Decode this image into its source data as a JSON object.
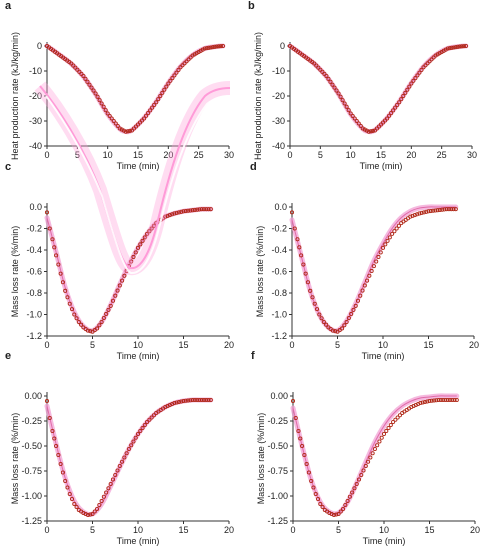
{
  "colors": {
    "model": "#f2a2d4",
    "data": "#b02818",
    "axis": "#333333",
    "artifact": "#ff9bd8"
  },
  "chart_data": [
    {
      "panel": "a",
      "type": "scatter",
      "xlabel": "Time (min)",
      "ylabel": "Heat production rate (kJ/kg/min)",
      "xlim": [
        0,
        30
      ],
      "ylim": [
        -40,
        0
      ],
      "xticks": [
        "0",
        "5",
        "10",
        "15",
        "20",
        "25",
        "30"
      ],
      "yticks": [
        "0",
        "-10",
        "-20",
        "-30",
        "-40"
      ],
      "series": [
        {
          "role": "measured",
          "x": [
            0,
            2,
            4,
            6,
            8,
            10,
            12,
            13,
            14,
            16,
            18,
            20,
            22,
            24,
            26,
            28,
            29
          ],
          "y": [
            0,
            -3.5,
            -7,
            -12,
            -19,
            -27,
            -33,
            -34.3,
            -33.8,
            -29,
            -22.5,
            -15,
            -8.5,
            -3.8,
            -1,
            -0.2,
            0
          ]
        },
        {
          "role": "model",
          "x": [
            0,
            2,
            4,
            6,
            8,
            10,
            12,
            13,
            14,
            16,
            18,
            20,
            22,
            24,
            26,
            28,
            29
          ],
          "y": [
            0,
            -3.4,
            -7.1,
            -12.2,
            -19.2,
            -27.3,
            -33.1,
            -34.2,
            -33.6,
            -28.8,
            -22.3,
            -14.8,
            -8.3,
            -3.7,
            -1,
            -0.2,
            0
          ]
        }
      ]
    },
    {
      "panel": "b",
      "type": "scatter",
      "xlabel": "Time (min)",
      "ylabel": "Heat production rate (kJ/kg/min)",
      "xlim": [
        0,
        30
      ],
      "ylim": [
        -40,
        0
      ],
      "xticks": [
        "0",
        "5",
        "10",
        "15",
        "20",
        "25",
        "30"
      ],
      "yticks": [
        "0",
        "-10",
        "-20",
        "-30",
        "-40"
      ],
      "series": [
        {
          "role": "measured",
          "x": [
            0,
            2,
            4,
            6,
            8,
            10,
            12,
            13,
            14,
            16,
            18,
            20,
            22,
            24,
            26,
            28,
            29
          ],
          "y": [
            0,
            -3.5,
            -7,
            -12,
            -19,
            -27,
            -33,
            -34.3,
            -33.8,
            -29,
            -22.5,
            -15,
            -8.5,
            -3.8,
            -1,
            -0.2,
            0
          ]
        },
        {
          "role": "model",
          "x": [
            0,
            2,
            4,
            6,
            8,
            10,
            12,
            13,
            14,
            16,
            18,
            20,
            22,
            24,
            26,
            28,
            29
          ],
          "y": [
            0,
            -3.4,
            -7.1,
            -12.2,
            -19.2,
            -27.3,
            -33.1,
            -34.2,
            -33.6,
            -28.8,
            -22.3,
            -14.8,
            -8.3,
            -3.7,
            -1,
            -0.2,
            0
          ]
        }
      ]
    },
    {
      "panel": "c",
      "type": "scatter",
      "xlabel": "Time (min)",
      "ylabel": "Mass loss rate (%/min)",
      "xlim": [
        0,
        20
      ],
      "ylim": [
        -1.2,
        0.0
      ],
      "xticks": [
        "0",
        "5",
        "10",
        "15",
        "20"
      ],
      "yticks": [
        "0.0",
        "-0.2",
        "-0.4",
        "-0.6",
        "-0.8",
        "-1.0",
        "-1.2"
      ],
      "series": [
        {
          "role": "measured",
          "x": [
            0,
            0.3,
            0.6,
            1,
            1.5,
            2,
            2.5,
            3,
            3.5,
            4,
            4.5,
            5,
            5.5,
            6,
            7,
            8,
            9,
            10,
            11,
            12,
            13,
            14,
            15,
            16,
            17,
            18
          ],
          "y": [
            -0.05,
            -0.2,
            -0.3,
            -0.45,
            -0.62,
            -0.78,
            -0.9,
            -1.0,
            -1.07,
            -1.12,
            -1.15,
            -1.16,
            -1.13,
            -1.07,
            -0.92,
            -0.73,
            -0.55,
            -0.38,
            -0.25,
            -0.15,
            -0.09,
            -0.06,
            -0.04,
            -0.03,
            -0.02,
            -0.02
          ]
        },
        {
          "role": "model",
          "x": [
            0,
            1,
            2,
            3,
            4,
            5,
            6,
            7,
            8,
            9,
            10,
            11,
            12,
            13,
            14,
            15,
            16,
            17,
            18
          ],
          "y": [
            -0.1,
            -0.42,
            -0.75,
            -0.98,
            -1.11,
            -1.15,
            -1.07,
            -0.91,
            -0.72,
            -0.54,
            -0.38,
            -0.25,
            -0.15,
            -0.09,
            -0.06,
            -0.04,
            -0.03,
            -0.02,
            -0.02
          ]
        }
      ]
    },
    {
      "panel": "d",
      "type": "scatter",
      "xlabel": "Time (min)",
      "ylabel": "Mass loss rate (%/min)",
      "xlim": [
        0,
        20
      ],
      "ylim": [
        -1.2,
        0.0
      ],
      "xticks": [
        "0",
        "5",
        "10",
        "15",
        "20"
      ],
      "yticks": [
        "0.0",
        "-0.2",
        "-0.4",
        "-0.6",
        "-0.8",
        "-1.0",
        "-1.2"
      ],
      "series": [
        {
          "role": "measured",
          "x": [
            0,
            0.3,
            0.6,
            1,
            1.5,
            2,
            2.5,
            3,
            3.5,
            4,
            4.5,
            5,
            5.5,
            6,
            7,
            8,
            9,
            10,
            11,
            12,
            13,
            14,
            15,
            16,
            17,
            18
          ],
          "y": [
            -0.05,
            -0.2,
            -0.3,
            -0.45,
            -0.62,
            -0.78,
            -0.9,
            -1.0,
            -1.07,
            -1.12,
            -1.15,
            -1.16,
            -1.13,
            -1.07,
            -0.92,
            -0.73,
            -0.55,
            -0.38,
            -0.25,
            -0.15,
            -0.09,
            -0.06,
            -0.04,
            -0.03,
            -0.02,
            -0.02
          ]
        },
        {
          "role": "model",
          "x": [
            0,
            1,
            2,
            3,
            4,
            5,
            6,
            7,
            8,
            9,
            10,
            11,
            12,
            13,
            14,
            15,
            16,
            17,
            18
          ],
          "y": [
            -0.12,
            -0.45,
            -0.78,
            -1.0,
            -1.12,
            -1.15,
            -1.06,
            -0.9,
            -0.7,
            -0.5,
            -0.34,
            -0.2,
            -0.1,
            -0.04,
            -0.01,
            0.0,
            0.0,
            0.0,
            0.0
          ]
        }
      ]
    },
    {
      "panel": "e",
      "type": "scatter",
      "xlabel": "Time (min)",
      "ylabel": "Mass loss rate (%/min)",
      "xlim": [
        0,
        20
      ],
      "ylim": [
        -1.25,
        0.0
      ],
      "xticks": [
        "0",
        "5",
        "10",
        "15",
        "20"
      ],
      "yticks": [
        "0.00",
        "-0.25",
        "-0.50",
        "-0.75",
        "-1.00",
        "-1.25"
      ],
      "series": [
        {
          "role": "measured",
          "x": [
            0,
            0.3,
            0.6,
            1,
            1.5,
            2,
            2.5,
            3,
            3.5,
            4,
            4.5,
            5,
            5.5,
            6,
            7,
            8,
            9,
            10,
            11,
            12,
            13,
            14,
            15,
            16,
            17,
            18
          ],
          "y": [
            -0.05,
            -0.22,
            -0.35,
            -0.5,
            -0.68,
            -0.85,
            -0.98,
            -1.08,
            -1.14,
            -1.17,
            -1.19,
            -1.18,
            -1.13,
            -1.05,
            -0.88,
            -0.7,
            -0.53,
            -0.38,
            -0.26,
            -0.17,
            -0.11,
            -0.07,
            -0.05,
            -0.04,
            -0.04,
            -0.04
          ]
        },
        {
          "role": "model",
          "x": [
            0,
            1,
            2,
            3,
            4,
            5,
            6,
            7,
            8,
            9,
            10,
            11,
            12,
            13,
            14,
            15,
            16,
            17,
            18
          ],
          "y": [
            -0.1,
            -0.48,
            -0.82,
            -1.05,
            -1.16,
            -1.18,
            -1.08,
            -0.9,
            -0.71,
            -0.53,
            -0.38,
            -0.26,
            -0.17,
            -0.11,
            -0.07,
            -0.05,
            -0.04,
            -0.04,
            -0.04
          ]
        }
      ]
    },
    {
      "panel": "f",
      "type": "scatter",
      "xlabel": "Time (min)",
      "ylabel": "Mass loss rate (%/min)",
      "xlim": [
        0,
        20
      ],
      "ylim": [
        -1.25,
        0.0
      ],
      "xticks": [
        "0",
        "5",
        "10",
        "15",
        "20"
      ],
      "yticks": [
        "0.00",
        "-0.25",
        "-0.50",
        "-0.75",
        "-1.00",
        "-1.25"
      ],
      "series": [
        {
          "role": "measured",
          "x": [
            0,
            0.3,
            0.6,
            1,
            1.5,
            2,
            2.5,
            3,
            3.5,
            4,
            4.5,
            5,
            5.5,
            6,
            7,
            8,
            9,
            10,
            11,
            12,
            13,
            14,
            15,
            16,
            17,
            18
          ],
          "y": [
            -0.05,
            -0.22,
            -0.35,
            -0.5,
            -0.68,
            -0.85,
            -0.98,
            -1.08,
            -1.14,
            -1.17,
            -1.19,
            -1.18,
            -1.13,
            -1.05,
            -0.88,
            -0.7,
            -0.53,
            -0.38,
            -0.26,
            -0.17,
            -0.11,
            -0.07,
            -0.05,
            -0.04,
            -0.04,
            -0.04
          ]
        },
        {
          "role": "model",
          "x": [
            0,
            1,
            2,
            3,
            4,
            5,
            6,
            7,
            8,
            9,
            10,
            11,
            12,
            13,
            14,
            15,
            16,
            17,
            18
          ],
          "y": [
            -0.12,
            -0.5,
            -0.84,
            -1.06,
            -1.16,
            -1.17,
            -1.06,
            -0.87,
            -0.66,
            -0.46,
            -0.3,
            -0.18,
            -0.1,
            -0.05,
            -0.02,
            -0.01,
            0.0,
            0.0,
            0.0
          ]
        }
      ]
    }
  ]
}
